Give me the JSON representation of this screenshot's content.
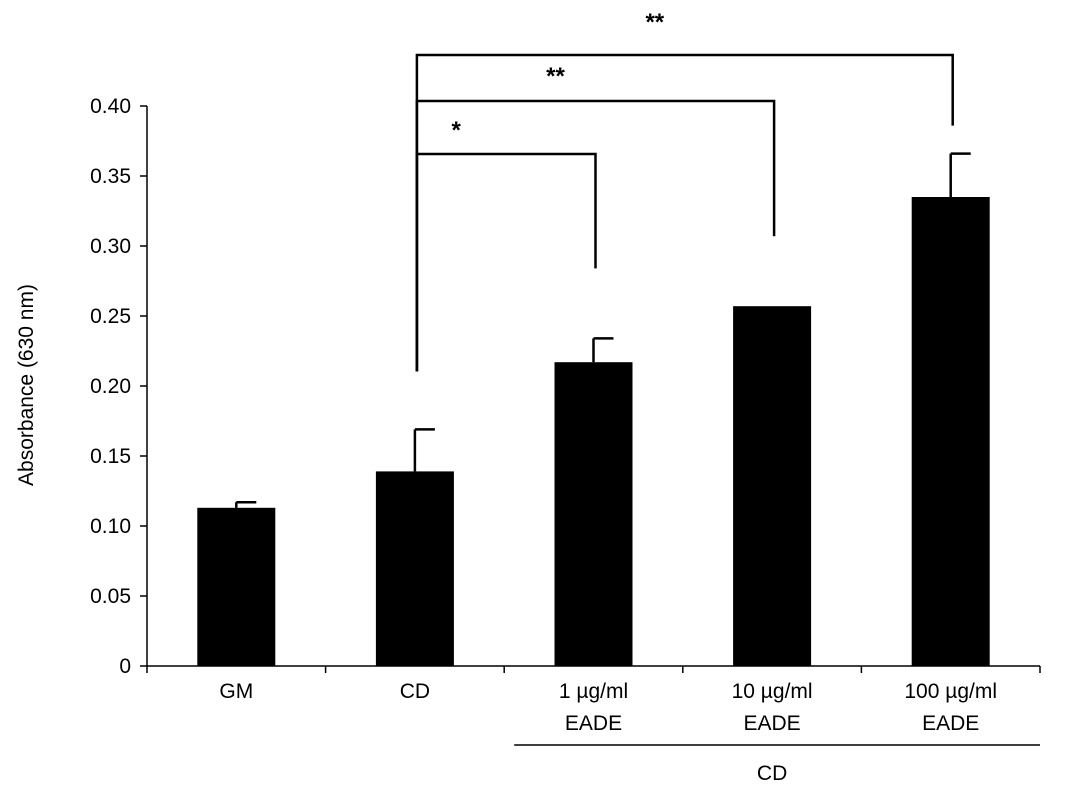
{
  "chart_data": {
    "type": "bar",
    "ylabel": "Absorbance (630 nm)",
    "xlabel": "",
    "ylim": [
      0,
      0.4
    ],
    "yticks": [
      "0",
      "0.05",
      "0.10",
      "0.15",
      "0.20",
      "0.25",
      "0.30",
      "0.35",
      "0.40"
    ],
    "yticks_values": [
      0,
      0.05,
      0.1,
      0.15,
      0.2,
      0.25,
      0.3,
      0.35,
      0.4
    ],
    "categories": [
      [
        "GM"
      ],
      [
        "CD"
      ],
      [
        "1 µg/ml",
        "EADE"
      ],
      [
        "10 µg/ml",
        "EADE"
      ],
      [
        "100 µg/ml",
        "EADE"
      ]
    ],
    "values": [
      0.113,
      0.139,
      0.217,
      0.257,
      0.335
    ],
    "errors": [
      0.004,
      0.03,
      0.017,
      0.0,
      0.031
    ],
    "bar_color": "#000000",
    "group_label": "CD",
    "group_categories": [
      2,
      4
    ],
    "significance": [
      {
        "from": 1,
        "to": 2,
        "label": "*"
      },
      {
        "from": 1,
        "to": 3,
        "label": "**"
      },
      {
        "from": 1,
        "to": 4,
        "label": "**"
      }
    ]
  }
}
